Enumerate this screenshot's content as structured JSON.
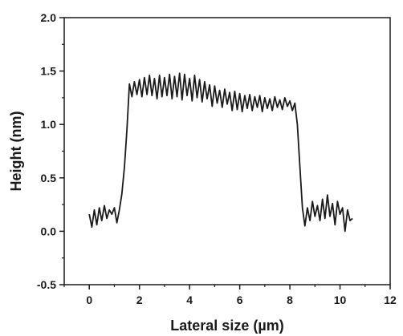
{
  "chart_data": {
    "type": "line",
    "title": "",
    "xlabel": "Lateral size (µm)",
    "ylabel": "Height (nm)",
    "xlim": [
      -1,
      12
    ],
    "ylim": [
      -0.5,
      2.0
    ],
    "x_ticks": [
      0,
      2,
      4,
      6,
      8,
      10,
      12
    ],
    "y_ticks": [
      -0.5,
      0.0,
      0.5,
      1.0,
      1.5,
      2.0
    ],
    "x_tick_labels": [
      "0",
      "2",
      "4",
      "6",
      "8",
      "10",
      "12"
    ],
    "y_tick_labels": [
      "-0.5",
      "0.0",
      "0.5",
      "1.0",
      "1.5",
      "2.0"
    ],
    "grid": false,
    "line_color": "#1a1a1a",
    "series": [
      {
        "x": [
          0.0,
          0.1,
          0.2,
          0.3,
          0.4,
          0.5,
          0.6,
          0.7,
          0.8,
          0.9,
          1.0,
          1.1,
          1.2,
          1.3,
          1.4,
          1.5,
          1.6,
          1.7,
          1.8,
          1.9,
          2.0,
          2.1,
          2.2,
          2.3,
          2.4,
          2.5,
          2.6,
          2.7,
          2.8,
          2.9,
          3.0,
          3.1,
          3.2,
          3.3,
          3.4,
          3.5,
          3.6,
          3.7,
          3.8,
          3.9,
          4.0,
          4.1,
          4.2,
          4.3,
          4.4,
          4.5,
          4.6,
          4.7,
          4.8,
          4.9,
          5.0,
          5.1,
          5.2,
          5.3,
          5.4,
          5.5,
          5.6,
          5.7,
          5.8,
          5.9,
          6.0,
          6.1,
          6.2,
          6.3,
          6.4,
          6.5,
          6.6,
          6.7,
          6.8,
          6.9,
          7.0,
          7.1,
          7.2,
          7.3,
          7.4,
          7.5,
          7.6,
          7.7,
          7.8,
          7.9,
          8.0,
          8.1,
          8.2,
          8.3,
          8.4,
          8.5,
          8.6,
          8.7,
          8.8,
          8.9,
          9.0,
          9.1,
          9.2,
          9.3,
          9.4,
          9.5,
          9.6,
          9.7,
          9.8,
          9.9,
          10.0,
          10.1,
          10.2,
          10.3,
          10.4,
          10.5
        ],
        "y": [
          0.16,
          0.04,
          0.2,
          0.06,
          0.22,
          0.1,
          0.24,
          0.12,
          0.2,
          0.16,
          0.22,
          0.08,
          0.2,
          0.35,
          0.6,
          0.95,
          1.38,
          1.26,
          1.4,
          1.28,
          1.42,
          1.26,
          1.44,
          1.28,
          1.46,
          1.27,
          1.43,
          1.24,
          1.46,
          1.26,
          1.44,
          1.27,
          1.47,
          1.24,
          1.45,
          1.26,
          1.48,
          1.23,
          1.47,
          1.27,
          1.43,
          1.22,
          1.46,
          1.25,
          1.42,
          1.21,
          1.4,
          1.24,
          1.37,
          1.17,
          1.36,
          1.2,
          1.32,
          1.16,
          1.33,
          1.19,
          1.3,
          1.13,
          1.31,
          1.14,
          1.29,
          1.12,
          1.27,
          1.15,
          1.28,
          1.13,
          1.26,
          1.16,
          1.27,
          1.12,
          1.25,
          1.15,
          1.24,
          1.13,
          1.26,
          1.16,
          1.23,
          1.14,
          1.25,
          1.17,
          1.22,
          1.13,
          1.2,
          1.0,
          0.6,
          0.22,
          0.05,
          0.22,
          0.1,
          0.28,
          0.14,
          0.24,
          0.1,
          0.3,
          0.12,
          0.34,
          0.14,
          0.26,
          0.06,
          0.28,
          0.16,
          0.22,
          0.0,
          0.2,
          0.1,
          0.12
        ]
      }
    ]
  }
}
